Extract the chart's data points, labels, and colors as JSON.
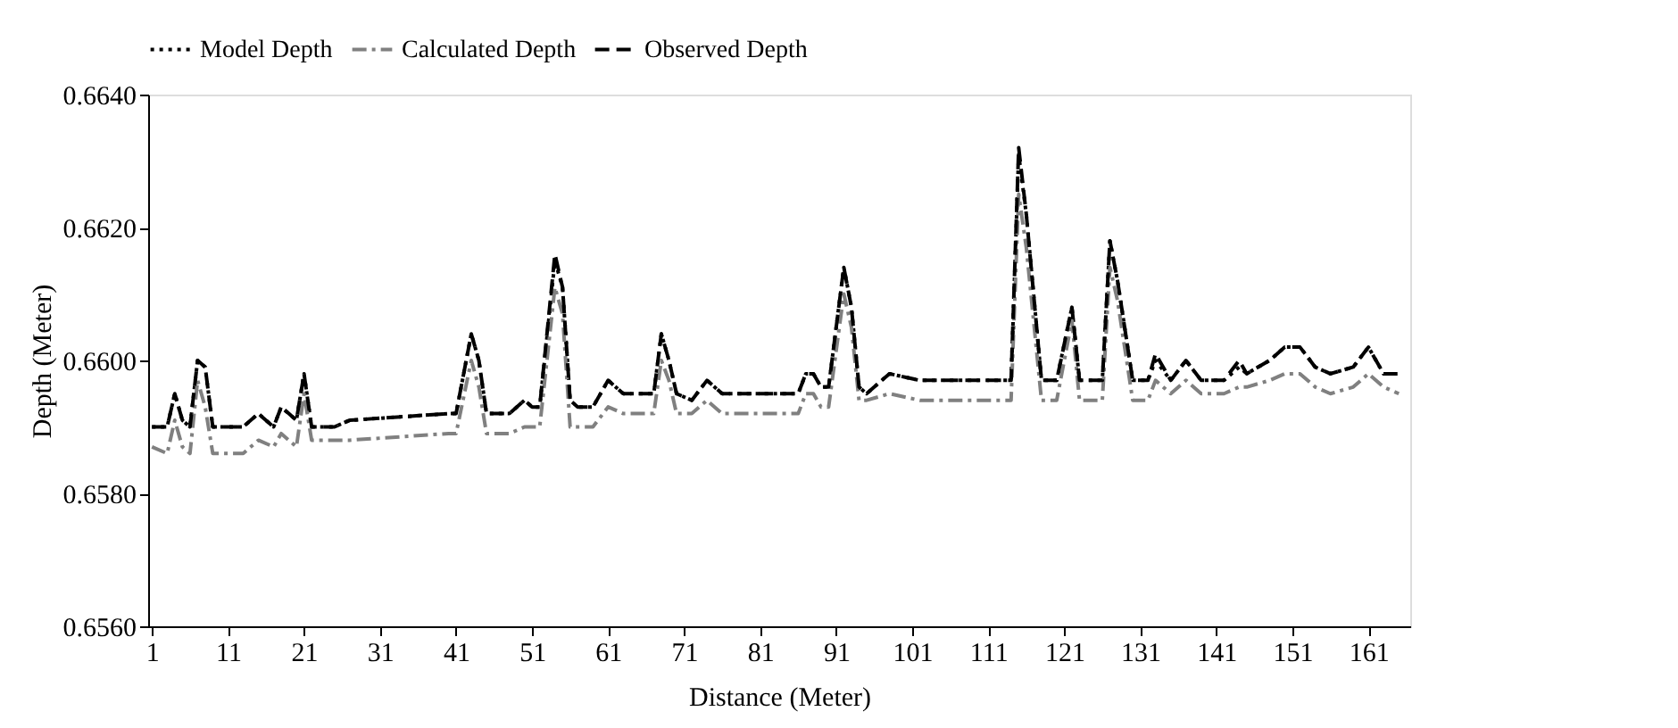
{
  "chart_data": {
    "type": "line",
    "xlabel": "Distance (Meter)",
    "ylabel": "Depth (Meter)",
    "xlim": [
      0.5,
      166.5
    ],
    "xticks": [
      1,
      11,
      21,
      31,
      41,
      51,
      61,
      71,
      81,
      91,
      101,
      111,
      121,
      131,
      141,
      151,
      161
    ],
    "ylim": [
      0.656,
      0.664
    ],
    "yticks": [
      {
        "value": 0.656,
        "label": "0.6560"
      },
      {
        "value": 0.658,
        "label": "0.6580"
      },
      {
        "value": 0.66,
        "label": "0.6600"
      },
      {
        "value": 0.662,
        "label": "0.6620"
      },
      {
        "value": 0.664,
        "label": "0.6640"
      }
    ],
    "grid": false,
    "legend": "top",
    "marker": "none",
    "series": [
      {
        "name": "Model Depth",
        "color": "#000000",
        "line_style": "dotted",
        "x": [
          1,
          3,
          4,
          5,
          6,
          7,
          8,
          9,
          13,
          15,
          17,
          18,
          19,
          20,
          21,
          22,
          25,
          27,
          40,
          41,
          43,
          44,
          45,
          48,
          50,
          51,
          52,
          54,
          55,
          56,
          57,
          59,
          61,
          63,
          67,
          68,
          69,
          70,
          72,
          74,
          76,
          86,
          87,
          88,
          89,
          90,
          92,
          93,
          94,
          95,
          98,
          102,
          114,
          115,
          116,
          118,
          120,
          122,
          123,
          126,
          127,
          128,
          130,
          132,
          133,
          135,
          137,
          139,
          142,
          144,
          145,
          148,
          150,
          152,
          154,
          156,
          159,
          161,
          163,
          165
        ],
        "values": [
          0.659,
          0.659,
          0.6595,
          0.6591,
          0.659,
          0.66,
          0.6599,
          0.659,
          0.659,
          0.6592,
          0.659,
          0.6593,
          0.6592,
          0.6591,
          0.6598,
          0.659,
          0.659,
          0.6591,
          0.6592,
          0.6592,
          0.6604,
          0.66,
          0.6592,
          0.6592,
          0.6594,
          0.6593,
          0.6593,
          0.6615,
          0.6611,
          0.6594,
          0.6593,
          0.6593,
          0.6597,
          0.6595,
          0.6595,
          0.6604,
          0.66,
          0.6595,
          0.6594,
          0.6597,
          0.6595,
          0.6595,
          0.6598,
          0.6598,
          0.6596,
          0.6596,
          0.6614,
          0.6608,
          0.6596,
          0.6595,
          0.6598,
          0.6597,
          0.6597,
          0.6631,
          0.6622,
          0.6597,
          0.6597,
          0.6608,
          0.6597,
          0.6597,
          0.6618,
          0.6612,
          0.6597,
          0.6597,
          0.66,
          0.6597,
          0.66,
          0.6597,
          0.6597,
          0.6599,
          0.6598,
          0.66,
          0.6602,
          0.6602,
          0.6599,
          0.6598,
          0.6599,
          0.6602,
          0.6598,
          0.6598
        ]
      },
      {
        "name": "Calculated Depth",
        "color": "#808080",
        "line_style": "dashdot",
        "x": [
          1,
          3,
          4,
          5,
          6,
          7,
          8,
          9,
          13,
          15,
          17,
          18,
          19,
          20,
          21,
          22,
          25,
          27,
          40,
          41,
          43,
          44,
          45,
          48,
          50,
          51,
          52,
          54,
          55,
          56,
          57,
          59,
          61,
          63,
          67,
          68,
          69,
          70,
          72,
          74,
          76,
          86,
          87,
          88,
          89,
          90,
          92,
          93,
          94,
          95,
          98,
          102,
          114,
          115,
          116,
          118,
          120,
          122,
          123,
          126,
          127,
          128,
          130,
          132,
          133,
          135,
          137,
          139,
          142,
          144,
          145,
          148,
          150,
          152,
          154,
          156,
          159,
          161,
          163,
          165
        ],
        "values": [
          0.6587,
          0.6586,
          0.6591,
          0.6587,
          0.6586,
          0.6597,
          0.6593,
          0.6586,
          0.6586,
          0.6588,
          0.6587,
          0.6589,
          0.6588,
          0.6587,
          0.6595,
          0.6588,
          0.6588,
          0.6588,
          0.6589,
          0.6589,
          0.66,
          0.6596,
          0.6589,
          0.6589,
          0.659,
          0.659,
          0.659,
          0.6611,
          0.6607,
          0.659,
          0.659,
          0.659,
          0.6593,
          0.6592,
          0.6592,
          0.66,
          0.6597,
          0.6592,
          0.6592,
          0.6594,
          0.6592,
          0.6592,
          0.6595,
          0.6595,
          0.6593,
          0.6593,
          0.661,
          0.6605,
          0.6594,
          0.6594,
          0.6595,
          0.6594,
          0.6594,
          0.6625,
          0.6617,
          0.6594,
          0.6594,
          0.6606,
          0.6594,
          0.6594,
          0.6614,
          0.6609,
          0.6594,
          0.6594,
          0.6597,
          0.6595,
          0.6597,
          0.6595,
          0.6595,
          0.6596,
          0.6596,
          0.6597,
          0.6598,
          0.6598,
          0.6596,
          0.6595,
          0.6596,
          0.6598,
          0.6596,
          0.6595
        ]
      },
      {
        "name": "Observed Depth",
        "color": "#000000",
        "line_style": "dashed",
        "x": [
          1,
          3,
          4,
          5,
          6,
          7,
          8,
          9,
          13,
          15,
          17,
          18,
          19,
          20,
          21,
          22,
          25,
          27,
          40,
          41,
          43,
          44,
          45,
          48,
          50,
          51,
          52,
          54,
          55,
          56,
          57,
          59,
          61,
          63,
          67,
          68,
          69,
          70,
          72,
          74,
          76,
          86,
          87,
          88,
          89,
          90,
          92,
          93,
          94,
          95,
          98,
          102,
          114,
          115,
          116,
          118,
          120,
          122,
          123,
          126,
          127,
          128,
          130,
          132,
          133,
          135,
          137,
          139,
          142,
          144,
          145,
          148,
          150,
          152,
          154,
          156,
          159,
          161,
          163,
          165
        ],
        "values": [
          0.659,
          0.659,
          0.6595,
          0.6591,
          0.659,
          0.66,
          0.6599,
          0.659,
          0.659,
          0.6592,
          0.659,
          0.6593,
          0.6592,
          0.6591,
          0.6598,
          0.659,
          0.659,
          0.6591,
          0.6592,
          0.6592,
          0.6604,
          0.66,
          0.6592,
          0.6592,
          0.6594,
          0.6593,
          0.6593,
          0.6616,
          0.6611,
          0.6594,
          0.6593,
          0.6593,
          0.6597,
          0.6595,
          0.6595,
          0.6604,
          0.66,
          0.6595,
          0.6594,
          0.6597,
          0.6595,
          0.6595,
          0.6598,
          0.6598,
          0.6596,
          0.6596,
          0.6614,
          0.6608,
          0.6596,
          0.6595,
          0.6598,
          0.6597,
          0.6597,
          0.6632,
          0.6622,
          0.6597,
          0.6597,
          0.6608,
          0.6597,
          0.6597,
          0.6618,
          0.6612,
          0.6597,
          0.6597,
          0.6601,
          0.6597,
          0.66,
          0.6597,
          0.6597,
          0.66,
          0.6598,
          0.66,
          0.6602,
          0.6602,
          0.6599,
          0.6598,
          0.6599,
          0.6602,
          0.6598,
          0.6598
        ]
      }
    ]
  }
}
